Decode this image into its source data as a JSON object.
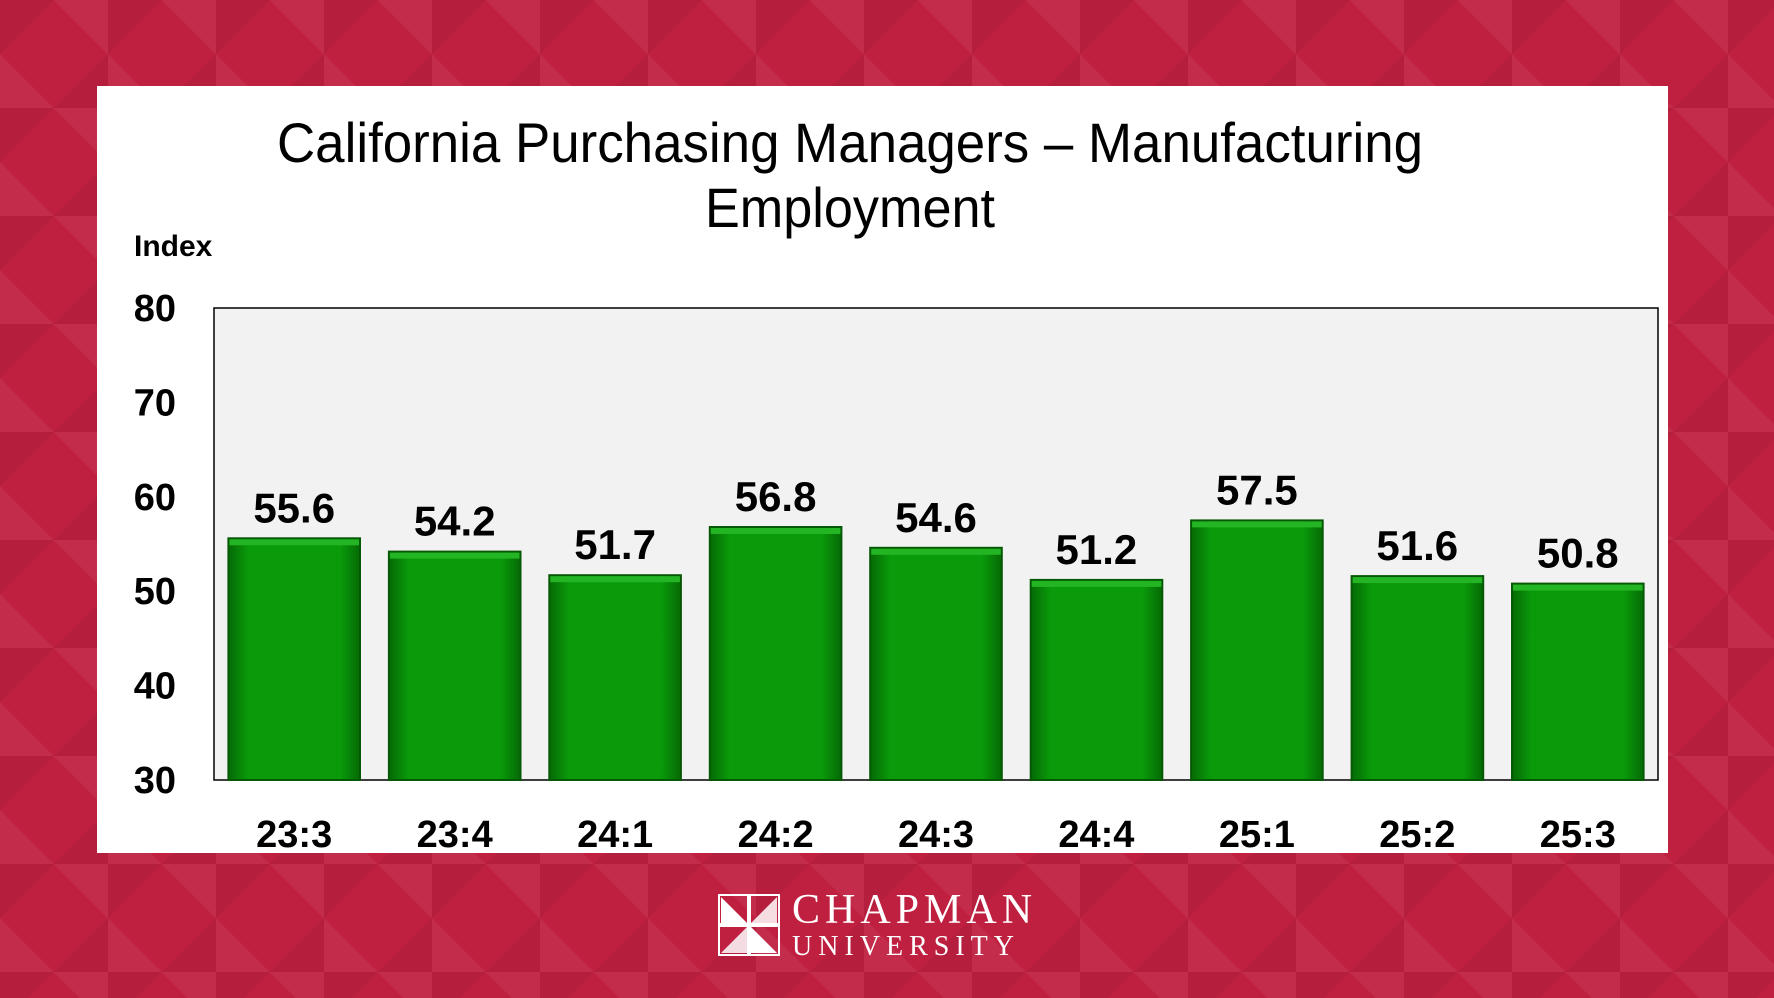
{
  "chart_data": {
    "type": "bar",
    "title_lines": [
      "California Purchasing Managers – Manufacturing",
      "Employment"
    ],
    "ylabel": "Index",
    "categories": [
      "23:3",
      "23:4",
      "24:1",
      "24:2",
      "24:3",
      "24:4",
      "25:1",
      "25:2",
      "25:3"
    ],
    "values": [
      55.6,
      54.2,
      51.7,
      56.8,
      54.6,
      51.2,
      57.5,
      51.6,
      50.8
    ],
    "data_labels": [
      "55.6",
      "54.2",
      "51.7",
      "56.8",
      "54.6",
      "51.2",
      "57.5",
      "51.6",
      "50.8"
    ],
    "ylim": [
      30,
      80
    ],
    "yticks": [
      "30",
      "40",
      "50",
      "60",
      "70",
      "80"
    ],
    "grid": false,
    "legend": "none",
    "colors": {
      "bar": "#078a07",
      "bar_dark": "#055905",
      "plot_bg": "#f2f2f2"
    }
  },
  "logo": {
    "line1": "CHAPMAN",
    "line2": "UNIVERSITY"
  }
}
